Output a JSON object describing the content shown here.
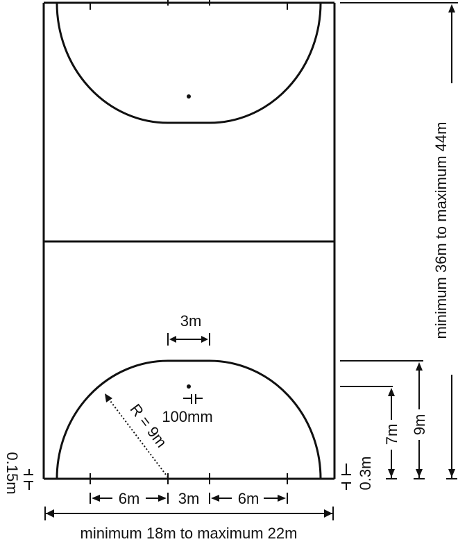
{
  "diagram": {
    "labels": {
      "goal_width": "3m",
      "penalty_spot": "100mm",
      "radius": "R = 9m",
      "left_segment": "6m",
      "center_segment": "3m",
      "right_segment": "6m",
      "court_width": "minimum 18m to maximum 22m",
      "court_length": "minimum 36m to maximum 44m",
      "line_width_left": "0.15m",
      "line_width_right": "0.3m",
      "dim_7m": "7m",
      "dim_9m": "9m"
    },
    "colors": {
      "line": "#111111",
      "background": "#ffffff"
    }
  }
}
